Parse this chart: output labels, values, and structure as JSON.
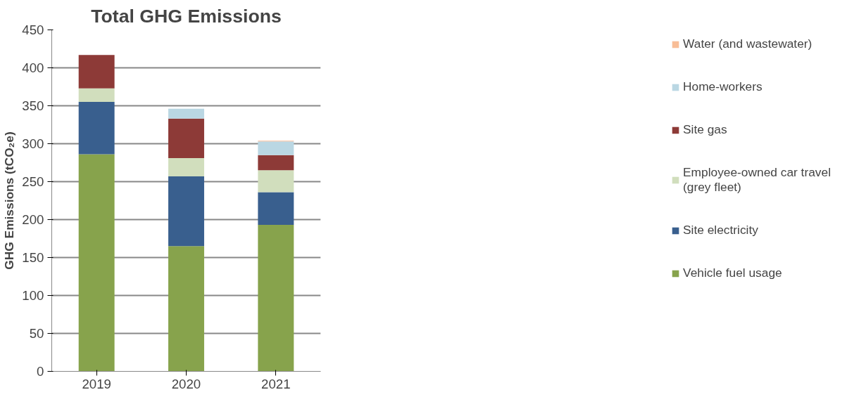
{
  "chart_data": {
    "type": "bar",
    "title": "Total GHG Emissions",
    "ylabel": "GHG Emissions (tCO₂e)",
    "categories": [
      "2019",
      "2020",
      "2021"
    ],
    "stacked": true,
    "ylim": [
      0,
      450
    ],
    "yticks": [
      0,
      50,
      100,
      150,
      200,
      250,
      300,
      350,
      400,
      450
    ],
    "grid": "y",
    "legend": "right",
    "series": [
      {
        "name": "Vehicle fuel usage",
        "color": "#87a34c",
        "values": [
          286,
          165,
          193
        ]
      },
      {
        "name": "Site electricity",
        "color": "#395f8e",
        "values": [
          69,
          92,
          43
        ]
      },
      {
        "name": "Employee-owned car travel\n(grey fleet)",
        "color": "#d1debd",
        "values": [
          18,
          24,
          29
        ]
      },
      {
        "name": "Site gas",
        "color": "#8d3a37",
        "values": [
          44,
          52,
          20
        ]
      },
      {
        "name": "Home-workers",
        "color": "#bad7e3",
        "values": [
          0,
          13,
          18
        ]
      },
      {
        "name": "Water (and wastewater)",
        "color": "#f8bd97",
        "values": [
          0,
          0,
          1
        ]
      }
    ]
  }
}
